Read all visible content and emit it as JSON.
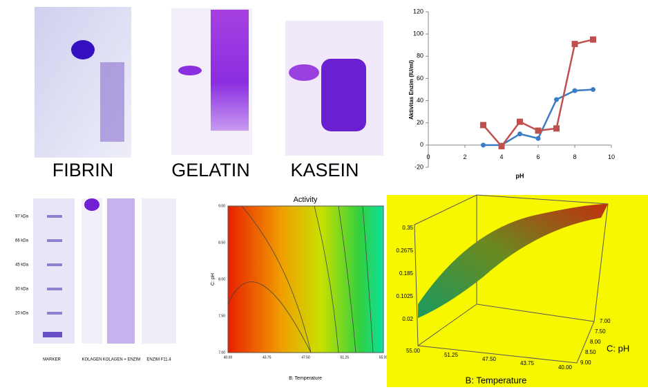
{
  "gels": {
    "fibrin": "FIBRIN",
    "gelatin": "GELATIN",
    "kasein": "KASEIN"
  },
  "chart_data": {
    "type": "line",
    "xlabel": "pH",
    "ylabel": "Aktivitas Enzim (IU/ml)",
    "x": [
      3,
      4,
      5,
      6,
      7,
      8,
      9
    ],
    "series": [
      {
        "color": "#3a7cc6",
        "marker": "circle",
        "values": [
          0,
          0,
          10,
          6,
          41,
          49,
          50
        ]
      },
      {
        "color": "#c0504d",
        "marker": "square",
        "values": [
          18,
          -1,
          21,
          13,
          15,
          91,
          95
        ]
      }
    ],
    "xlim": [
      0,
      10
    ],
    "xticks": [
      0,
      2,
      4,
      6,
      8,
      10
    ],
    "ylim": [
      -20,
      120
    ],
    "yticks": [
      -20,
      0,
      20,
      40,
      60,
      80,
      100,
      120
    ]
  },
  "collagen_gel": {
    "markers": [
      "97 kDa",
      "66 kDa",
      "45 kDa",
      "30 kDa",
      "20 kDa"
    ],
    "lanes": [
      "MARKER",
      "KOLAGEN",
      "KOLAGEN + ENZIM",
      "ENZIM F11.4"
    ]
  },
  "contour": {
    "title": "Activity",
    "xlabel": "B: Temperature",
    "ylabel": "C: pH",
    "xticks": [
      "40.00",
      "43.75",
      "47.50",
      "51.25",
      "55.00"
    ],
    "yticks": [
      "9.00",
      "8.50",
      "8.00",
      "7.50",
      "7.00"
    ]
  },
  "surface": {
    "zticks": [
      "0.35",
      "0.2675",
      "0.185",
      "0.1025",
      "0.02"
    ],
    "temp_ticks": [
      "55.00",
      "51.25",
      "47.50",
      "43.75",
      "40.00"
    ],
    "ph_ticks": [
      "7.00",
      "7.50",
      "8.00",
      "8.50",
      "9.00"
    ],
    "xlabel": "B: Temperature",
    "ylabel": "C: pH"
  }
}
